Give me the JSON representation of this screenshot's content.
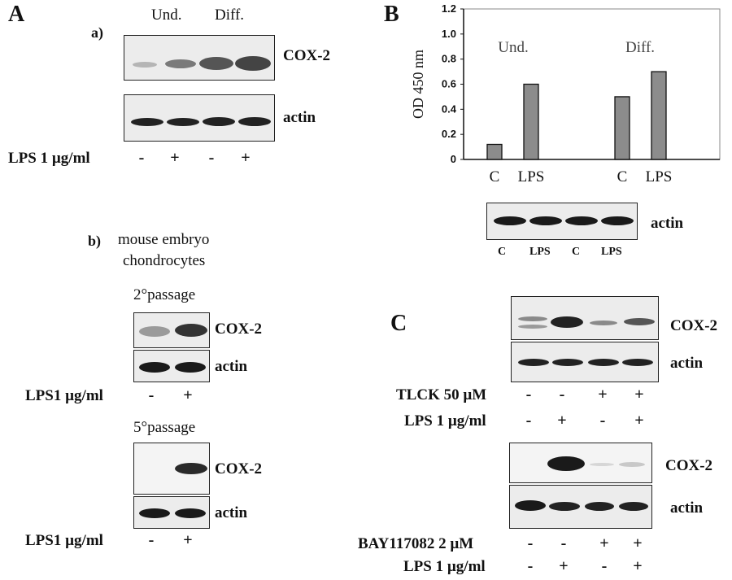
{
  "panelA": {
    "letter": "A",
    "a": {
      "label": "a)",
      "group_und": "Und.",
      "group_diff": "Diff.",
      "cox2": "COX-2",
      "actin": "actin",
      "lps_label": "LPS 1 µg/ml",
      "signs": [
        "-",
        "+",
        "-",
        "+"
      ]
    },
    "b": {
      "label": "b)",
      "title_line1": "mouse embryo",
      "title_line2": "chondrocytes",
      "passage2": "2°passage",
      "passage5": "5°passage",
      "cox2": "COX-2",
      "actin": "actin",
      "lps_label": "LPS1 µg/ml",
      "signs": [
        "-",
        "+"
      ]
    }
  },
  "panelB": {
    "letter": "B",
    "actin": "actin",
    "lane_labels": [
      "C",
      "LPS",
      "C",
      "LPS"
    ]
  },
  "chart_data": {
    "type": "bar",
    "ylabel": "OD 450 nm",
    "ylim": [
      0,
      1.2
    ],
    "yticks": [
      "0",
      "0.2",
      "0.4",
      "0.6",
      "0.8",
      "1.0",
      "1.2"
    ],
    "groups": [
      "Und.",
      "Diff."
    ],
    "categories": [
      "C",
      "LPS",
      "C",
      "LPS"
    ],
    "values": [
      0.12,
      0.6,
      0.5,
      0.7
    ],
    "bar_color": "#8c8c8c"
  },
  "panelC": {
    "letter": "C",
    "cox2": "COX-2",
    "actin": "actin",
    "tlck_label": "TLCK 50 µM",
    "tlck_signs": [
      "-",
      "-",
      "+",
      "+"
    ],
    "lps_label": "LPS 1 µg/ml",
    "lps_signs": [
      "-",
      "+",
      "-",
      "+"
    ],
    "bay_label": "BAY117082  2 µM",
    "bay_signs": [
      "-",
      "-",
      "+",
      "+"
    ],
    "lps2_label": "LPS 1 µg/ml",
    "lps2_signs": [
      "-",
      "+",
      "-",
      "+"
    ]
  }
}
